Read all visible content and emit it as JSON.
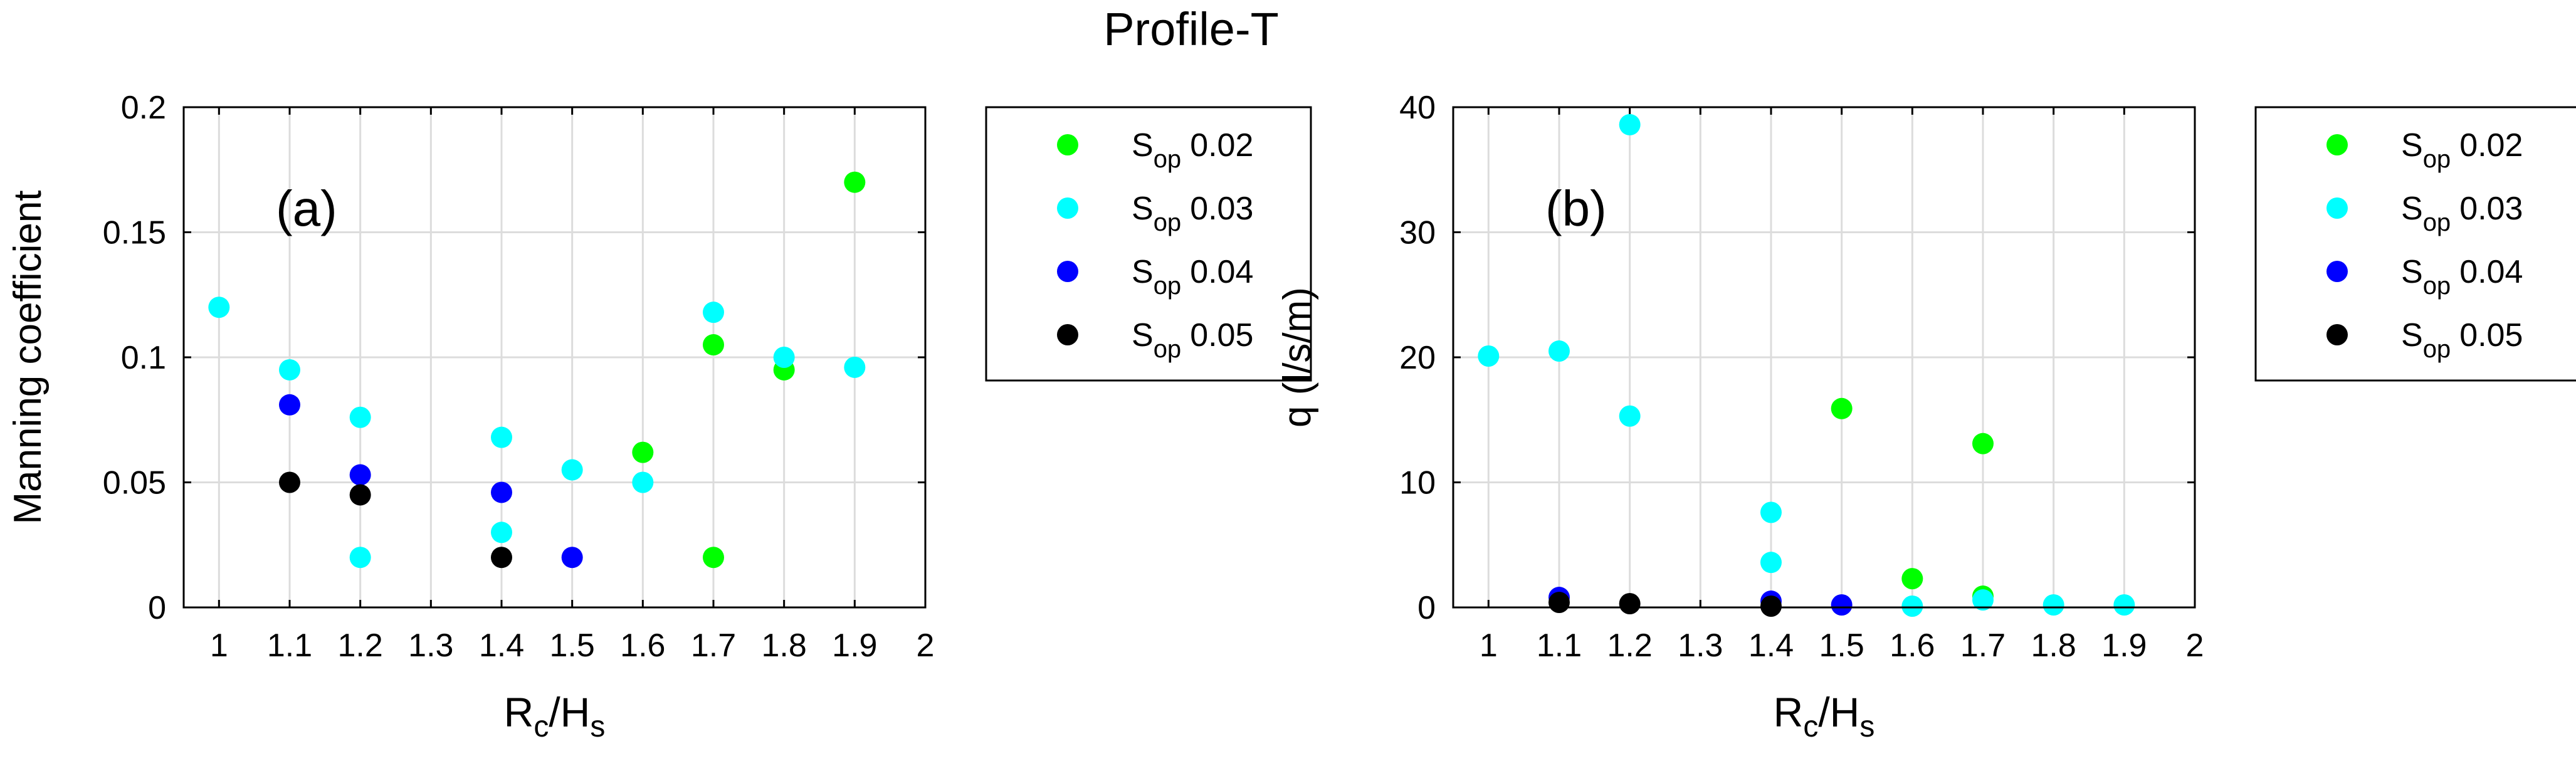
{
  "figure_title": "Profile-T",
  "colors": {
    "s002": "#00ff00",
    "s003": "#00ffff",
    "s004": "#0000ff",
    "s005": "#000000",
    "grid": "#dcdcdc",
    "axis": "#000000"
  },
  "chart_data": [
    {
      "type": "scatter",
      "panel_label": "(a)",
      "title": "",
      "xlabel_main": "R",
      "xlabel_sub1": "c",
      "xlabel_sep": "/H",
      "xlabel_sub2": "s",
      "ylabel": "Manning coefficient",
      "xlim": [
        0.95,
        2
      ],
      "ylim": [
        0,
        0.2
      ],
      "xticks": [
        1,
        1.1,
        1.2,
        1.3,
        1.4,
        1.5,
        1.6,
        1.7,
        1.8,
        1.9,
        2
      ],
      "xtick_labels": [
        "1",
        "1.1",
        "1.2",
        "1.3",
        "1.4",
        "1.5",
        "1.6",
        "1.7",
        "1.8",
        "1.9",
        "2"
      ],
      "yticks": [
        0,
        0.05,
        0.1,
        0.15,
        0.2
      ],
      "ytick_labels": [
        "0",
        "0.05",
        "0.1",
        "0.15",
        "0.2"
      ],
      "grid": true,
      "legend_placement": "outside-right",
      "series": [
        {
          "name_main": "S",
          "name_sub": "op",
          "value": "0.02",
          "color_key": "s002",
          "points": [
            [
              1.6,
              0.062
            ],
            [
              1.7,
              0.105
            ],
            [
              1.7,
              0.02
            ],
            [
              1.8,
              0.095
            ],
            [
              1.9,
              0.17
            ]
          ]
        },
        {
          "name_main": "S",
          "name_sub": "op",
          "value": "0.03",
          "color_key": "s003",
          "points": [
            [
              1.0,
              0.12
            ],
            [
              1.1,
              0.095
            ],
            [
              1.2,
              0.076
            ],
            [
              1.2,
              0.02
            ],
            [
              1.4,
              0.068
            ],
            [
              1.4,
              0.03
            ],
            [
              1.5,
              0.055
            ],
            [
              1.6,
              0.05
            ],
            [
              1.7,
              0.118
            ],
            [
              1.8,
              0.1
            ],
            [
              1.9,
              0.096
            ]
          ]
        },
        {
          "name_main": "S",
          "name_sub": "op",
          "value": "0.04",
          "color_key": "s004",
          "points": [
            [
              1.1,
              0.081
            ],
            [
              1.2,
              0.053
            ],
            [
              1.4,
              0.046
            ],
            [
              1.5,
              0.02
            ]
          ]
        },
        {
          "name_main": "S",
          "name_sub": "op",
          "value": "0.05",
          "color_key": "s005",
          "points": [
            [
              1.1,
              0.05
            ],
            [
              1.2,
              0.045
            ],
            [
              1.4,
              0.02
            ]
          ]
        }
      ]
    },
    {
      "type": "scatter",
      "panel_label": "(b)",
      "title": "",
      "xlabel_main": "R",
      "xlabel_sub1": "c",
      "xlabel_sep": "/H",
      "xlabel_sub2": "s",
      "ylabel": "q (l/s/m)",
      "xlim": [
        0.95,
        2
      ],
      "ylim": [
        0,
        40
      ],
      "xticks": [
        1,
        1.1,
        1.2,
        1.3,
        1.4,
        1.5,
        1.6,
        1.7,
        1.8,
        1.9,
        2
      ],
      "xtick_labels": [
        "1",
        "1.1",
        "1.2",
        "1.3",
        "1.4",
        "1.5",
        "1.6",
        "1.7",
        "1.8",
        "1.9",
        "2"
      ],
      "yticks": [
        0,
        10,
        20,
        30,
        40
      ],
      "ytick_labels": [
        "0",
        "10",
        "20",
        "30",
        "40"
      ],
      "grid": true,
      "legend_placement": "outside-right",
      "series": [
        {
          "name_main": "S",
          "name_sub": "op",
          "value": "0.02",
          "color_key": "s002",
          "points": [
            [
              1.5,
              15.9
            ],
            [
              1.6,
              2.3
            ],
            [
              1.7,
              13.1
            ],
            [
              1.7,
              0.9
            ]
          ]
        },
        {
          "name_main": "S",
          "name_sub": "op",
          "value": "0.03",
          "color_key": "s003",
          "points": [
            [
              1.0,
              20.1
            ],
            [
              1.1,
              20.5
            ],
            [
              1.2,
              38.6
            ],
            [
              1.2,
              15.3
            ],
            [
              1.4,
              7.6
            ],
            [
              1.4,
              3.6
            ],
            [
              1.6,
              0.1
            ],
            [
              1.7,
              0.6
            ],
            [
              1.8,
              0.2
            ],
            [
              1.9,
              0.2
            ]
          ]
        },
        {
          "name_main": "S",
          "name_sub": "op",
          "value": "0.04",
          "color_key": "s004",
          "points": [
            [
              1.1,
              0.8
            ],
            [
              1.4,
              0.5
            ],
            [
              1.5,
              0.2
            ]
          ]
        },
        {
          "name_main": "S",
          "name_sub": "op",
          "value": "0.05",
          "color_key": "s005",
          "points": [
            [
              1.1,
              0.4
            ],
            [
              1.2,
              0.3
            ],
            [
              1.4,
              0.1
            ]
          ]
        }
      ]
    }
  ]
}
